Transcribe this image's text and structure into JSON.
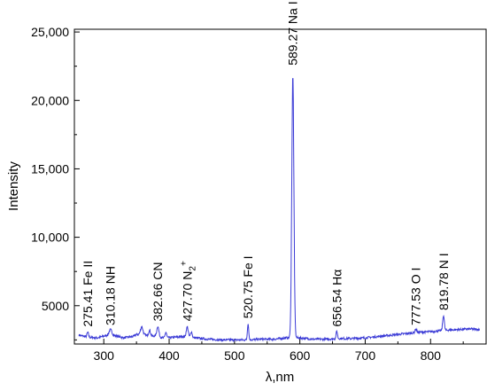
{
  "chart_data": {
    "type": "line",
    "title": "",
    "xlabel": "λ,nm",
    "ylabel": "Intensity",
    "xlim": [
      255,
      885
    ],
    "ylim": [
      2200,
      25200
    ],
    "x_ticks": [
      300,
      400,
      500,
      600,
      700,
      800
    ],
    "x_tick_labels": [
      "300",
      "400",
      "500",
      "600",
      "700",
      "800"
    ],
    "y_ticks": [
      5000,
      10000,
      15000,
      20000,
      25000
    ],
    "y_tick_labels": [
      "5000",
      "10,000",
      "15,000",
      "20,000",
      "25,000"
    ],
    "grid": false,
    "legend": "none",
    "series_color": "#3b3bd6",
    "baseline": [
      [
        262,
        2850
      ],
      [
        275,
        2700
      ],
      [
        290,
        2650
      ],
      [
        310,
        2900
      ],
      [
        330,
        2650
      ],
      [
        345,
        2750
      ],
      [
        350,
        2900
      ],
      [
        360,
        2900
      ],
      [
        370,
        2750
      ],
      [
        380,
        2800
      ],
      [
        390,
        2650
      ],
      [
        400,
        2650
      ],
      [
        420,
        2750
      ],
      [
        440,
        2650
      ],
      [
        460,
        2550
      ],
      [
        480,
        2500
      ],
      [
        500,
        2500
      ],
      [
        520,
        2500
      ],
      [
        540,
        2550
      ],
      [
        560,
        2550
      ],
      [
        580,
        2650
      ],
      [
        600,
        2650
      ],
      [
        620,
        2550
      ],
      [
        640,
        2550
      ],
      [
        660,
        2600
      ],
      [
        680,
        2600
      ],
      [
        700,
        2650
      ],
      [
        720,
        2750
      ],
      [
        740,
        2850
      ],
      [
        760,
        2950
      ],
      [
        780,
        3050
      ],
      [
        800,
        3100
      ],
      [
        820,
        3200
      ],
      [
        840,
        3250
      ],
      [
        860,
        3300
      ],
      [
        875,
        3250
      ]
    ],
    "peaks": [
      {
        "x": 275.41,
        "y": 3050,
        "w": 1.2
      },
      {
        "x": 310.18,
        "y": 3250,
        "w": 2.0
      },
      {
        "x": 358.0,
        "y": 3450,
        "w": 1.8
      },
      {
        "x": 370.0,
        "y": 3200,
        "w": 1.5
      },
      {
        "x": 382.66,
        "y": 3500,
        "w": 1.5
      },
      {
        "x": 395.0,
        "y": 3050,
        "w": 1.2
      },
      {
        "x": 427.7,
        "y": 3450,
        "w": 1.5
      },
      {
        "x": 434.0,
        "y": 3100,
        "w": 1.2
      },
      {
        "x": 520.75,
        "y": 3700,
        "w": 1.0
      },
      {
        "x": 589.27,
        "y": 21800,
        "w": 1.6
      },
      {
        "x": 656.54,
        "y": 3150,
        "w": 1.0
      },
      {
        "x": 777.53,
        "y": 3300,
        "w": 1.2
      },
      {
        "x": 819.78,
        "y": 4300,
        "w": 1.2
      }
    ],
    "annotations": [
      {
        "text": "275.41 Fe II",
        "x": 275.41,
        "y": 3200
      },
      {
        "text": "310.18 NH",
        "x": 310.18,
        "y": 3300
      },
      {
        "text": "382.66 CN",
        "x": 382.66,
        "y": 3600
      },
      {
        "text": "427.70 N",
        "sub": "2",
        "sup": "+",
        "x": 427.7,
        "y": 3600
      },
      {
        "text": "520.75 Fe I",
        "x": 520.75,
        "y": 3800
      },
      {
        "text": "589.27 Na I",
        "x": 589.27,
        "y": 22300
      },
      {
        "text": "656.54 Hα",
        "x": 656.54,
        "y": 3200
      },
      {
        "text": "777.53 O I",
        "x": 777.53,
        "y": 3300
      },
      {
        "text": "819.78 N I",
        "x": 819.78,
        "y": 4400
      }
    ]
  }
}
